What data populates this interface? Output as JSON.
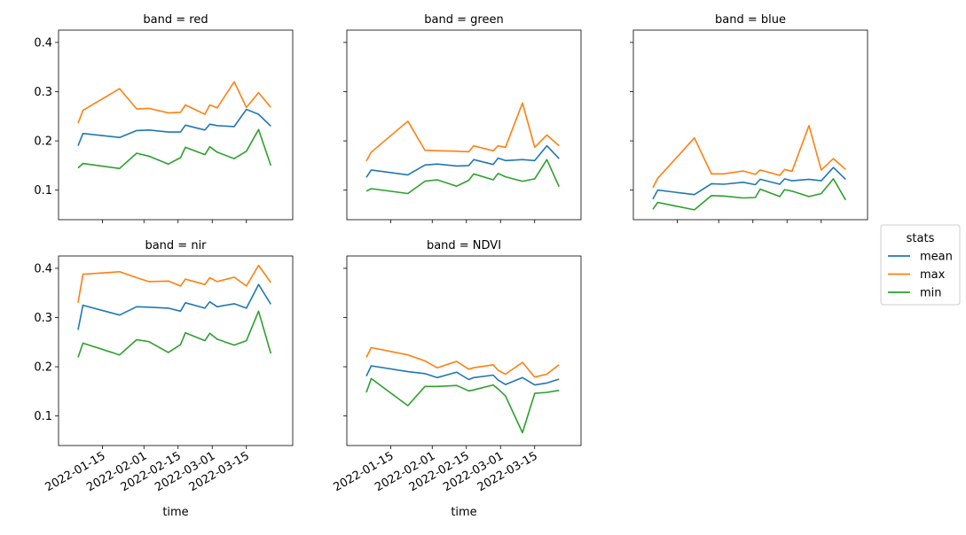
{
  "chart_data": {
    "type": "line",
    "legend": {
      "title": "stats",
      "placement": "right",
      "entries": [
        {
          "name": "mean",
          "color": "#1f77b4"
        },
        {
          "name": "max",
          "color": "#ff7f0e"
        },
        {
          "name": "min",
          "color": "#2ca02c"
        }
      ]
    },
    "xlabel": "time",
    "x_ticks": [
      "2022-01-15",
      "2022-02-01",
      "2022-02-15",
      "2022-03-01",
      "2022-03-15"
    ],
    "ylim": [
      0.04,
      0.425
    ],
    "y_ticks": [
      "0.1",
      "0.2",
      "0.3",
      "0.4"
    ],
    "x": [
      "2022-01-05",
      "2022-01-07",
      "2022-01-22",
      "2022-01-29",
      "2022-02-03",
      "2022-02-11",
      "2022-02-16",
      "2022-02-18",
      "2022-02-26",
      "2022-02-28",
      "2022-03-03",
      "2022-03-10",
      "2022-03-15",
      "2022-03-20",
      "2022-03-25"
    ],
    "panels": [
      {
        "title": "band = red",
        "series": [
          {
            "name": "mean",
            "values": [
              0.19,
              0.215,
              0.207,
              0.221,
              0.222,
              0.218,
              0.218,
              0.232,
              0.222,
              0.234,
              0.231,
              0.229,
              0.264,
              0.254,
              0.23
            ]
          },
          {
            "name": "max",
            "values": [
              0.236,
              0.262,
              0.306,
              0.265,
              0.266,
              0.257,
              0.258,
              0.273,
              0.254,
              0.273,
              0.267,
              0.32,
              0.268,
              0.298,
              0.268
            ]
          },
          {
            "name": "min",
            "values": [
              0.145,
              0.154,
              0.144,
              0.175,
              0.169,
              0.153,
              0.166,
              0.187,
              0.172,
              0.188,
              0.177,
              0.164,
              0.179,
              0.223,
              0.15
            ]
          }
        ]
      },
      {
        "title": "band = green",
        "series": [
          {
            "name": "mean",
            "values": [
              0.126,
              0.141,
              0.131,
              0.151,
              0.153,
              0.149,
              0.15,
              0.162,
              0.152,
              0.165,
              0.16,
              0.162,
              0.16,
              0.19,
              0.164
            ]
          },
          {
            "name": "max",
            "values": [
              0.159,
              0.177,
              0.24,
              0.181,
              0.18,
              0.179,
              0.178,
              0.19,
              0.18,
              0.19,
              0.187,
              0.277,
              0.187,
              0.212,
              0.19
            ]
          },
          {
            "name": "min",
            "values": [
              0.098,
              0.103,
              0.093,
              0.118,
              0.121,
              0.108,
              0.12,
              0.133,
              0.121,
              0.134,
              0.127,
              0.118,
              0.123,
              0.162,
              0.107
            ]
          }
        ]
      },
      {
        "title": "band = blue",
        "series": [
          {
            "name": "mean",
            "values": [
              0.082,
              0.1,
              0.091,
              0.113,
              0.112,
              0.116,
              0.111,
              0.122,
              0.112,
              0.123,
              0.119,
              0.122,
              0.119,
              0.146,
              0.122
            ]
          },
          {
            "name": "max",
            "values": [
              0.105,
              0.124,
              0.206,
              0.133,
              0.133,
              0.139,
              0.132,
              0.141,
              0.13,
              0.142,
              0.138,
              0.231,
              0.141,
              0.164,
              0.142
            ]
          },
          {
            "name": "min",
            "values": [
              0.061,
              0.075,
              0.06,
              0.089,
              0.088,
              0.084,
              0.085,
              0.102,
              0.087,
              0.101,
              0.098,
              0.087,
              0.093,
              0.123,
              0.08
            ]
          }
        ]
      },
      {
        "title": "band = nir",
        "series": [
          {
            "name": "mean",
            "values": [
              0.275,
              0.325,
              0.305,
              0.322,
              0.321,
              0.319,
              0.313,
              0.33,
              0.319,
              0.332,
              0.322,
              0.328,
              0.319,
              0.367,
              0.327
            ]
          },
          {
            "name": "max",
            "values": [
              0.33,
              0.388,
              0.393,
              0.381,
              0.373,
              0.374,
              0.364,
              0.378,
              0.367,
              0.381,
              0.373,
              0.382,
              0.364,
              0.406,
              0.371
            ]
          },
          {
            "name": "min",
            "values": [
              0.219,
              0.248,
              0.224,
              0.255,
              0.251,
              0.229,
              0.245,
              0.269,
              0.253,
              0.268,
              0.256,
              0.244,
              0.253,
              0.313,
              0.227
            ]
          }
        ]
      },
      {
        "title": "band = NDVI",
        "series": [
          {
            "name": "mean",
            "values": [
              0.181,
              0.202,
              0.19,
              0.186,
              0.178,
              0.189,
              0.174,
              0.178,
              0.183,
              0.173,
              0.164,
              0.178,
              0.163,
              0.167,
              0.175
            ]
          },
          {
            "name": "max",
            "values": [
              0.219,
              0.239,
              0.224,
              0.212,
              0.198,
              0.211,
              0.195,
              0.198,
              0.204,
              0.193,
              0.185,
              0.209,
              0.179,
              0.185,
              0.204
            ]
          },
          {
            "name": "min",
            "values": [
              0.148,
              0.176,
              0.121,
              0.16,
              0.16,
              0.162,
              0.151,
              0.153,
              0.163,
              0.155,
              0.141,
              0.066,
              0.146,
              0.148,
              0.152
            ]
          }
        ]
      }
    ]
  }
}
